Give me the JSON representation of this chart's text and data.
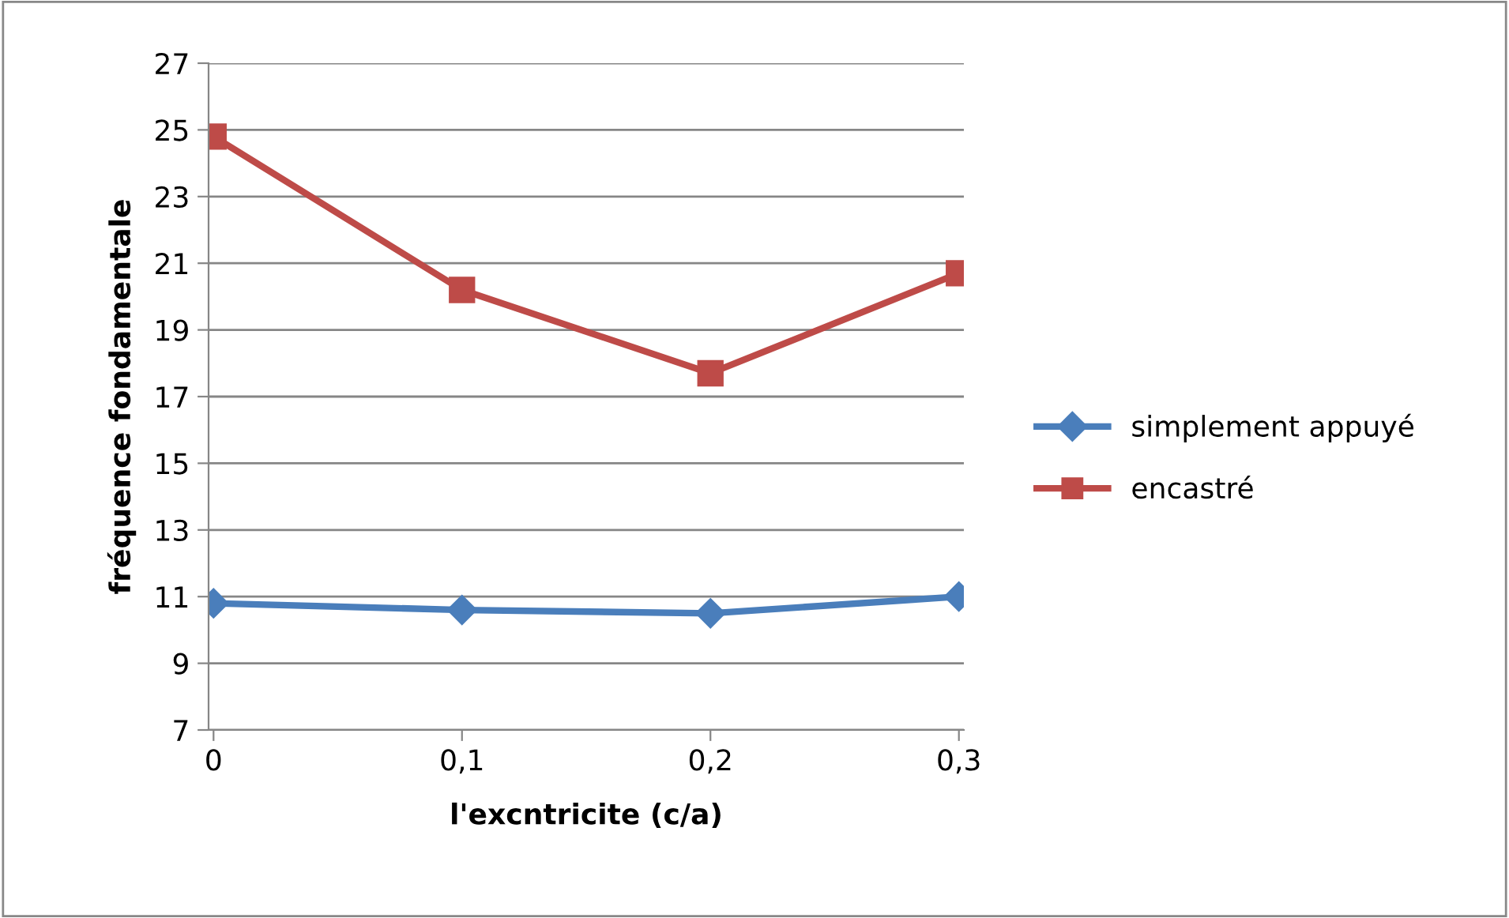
{
  "chart_data": {
    "type": "line",
    "xlabel": "l'excntricite (c/a)",
    "ylabel": "fréquence fondamentale",
    "categories": [
      "0",
      "0,1",
      "0,2",
      "0,3"
    ],
    "series": [
      {
        "name": "simplement appuyé",
        "color": "#4a7ebb",
        "marker": "diamond",
        "values": [
          10.8,
          10.6,
          10.5,
          11.0
        ]
      },
      {
        "name": "encastré",
        "color": "#be4b48",
        "marker": "square",
        "values": [
          24.8,
          20.2,
          17.7,
          20.7
        ]
      }
    ],
    "ylim": [
      7,
      27
    ],
    "yticks": [
      7,
      9,
      11,
      13,
      15,
      17,
      19,
      21,
      23,
      25,
      27
    ],
    "grid": "y",
    "legend": "right",
    "line_style": "solid"
  }
}
